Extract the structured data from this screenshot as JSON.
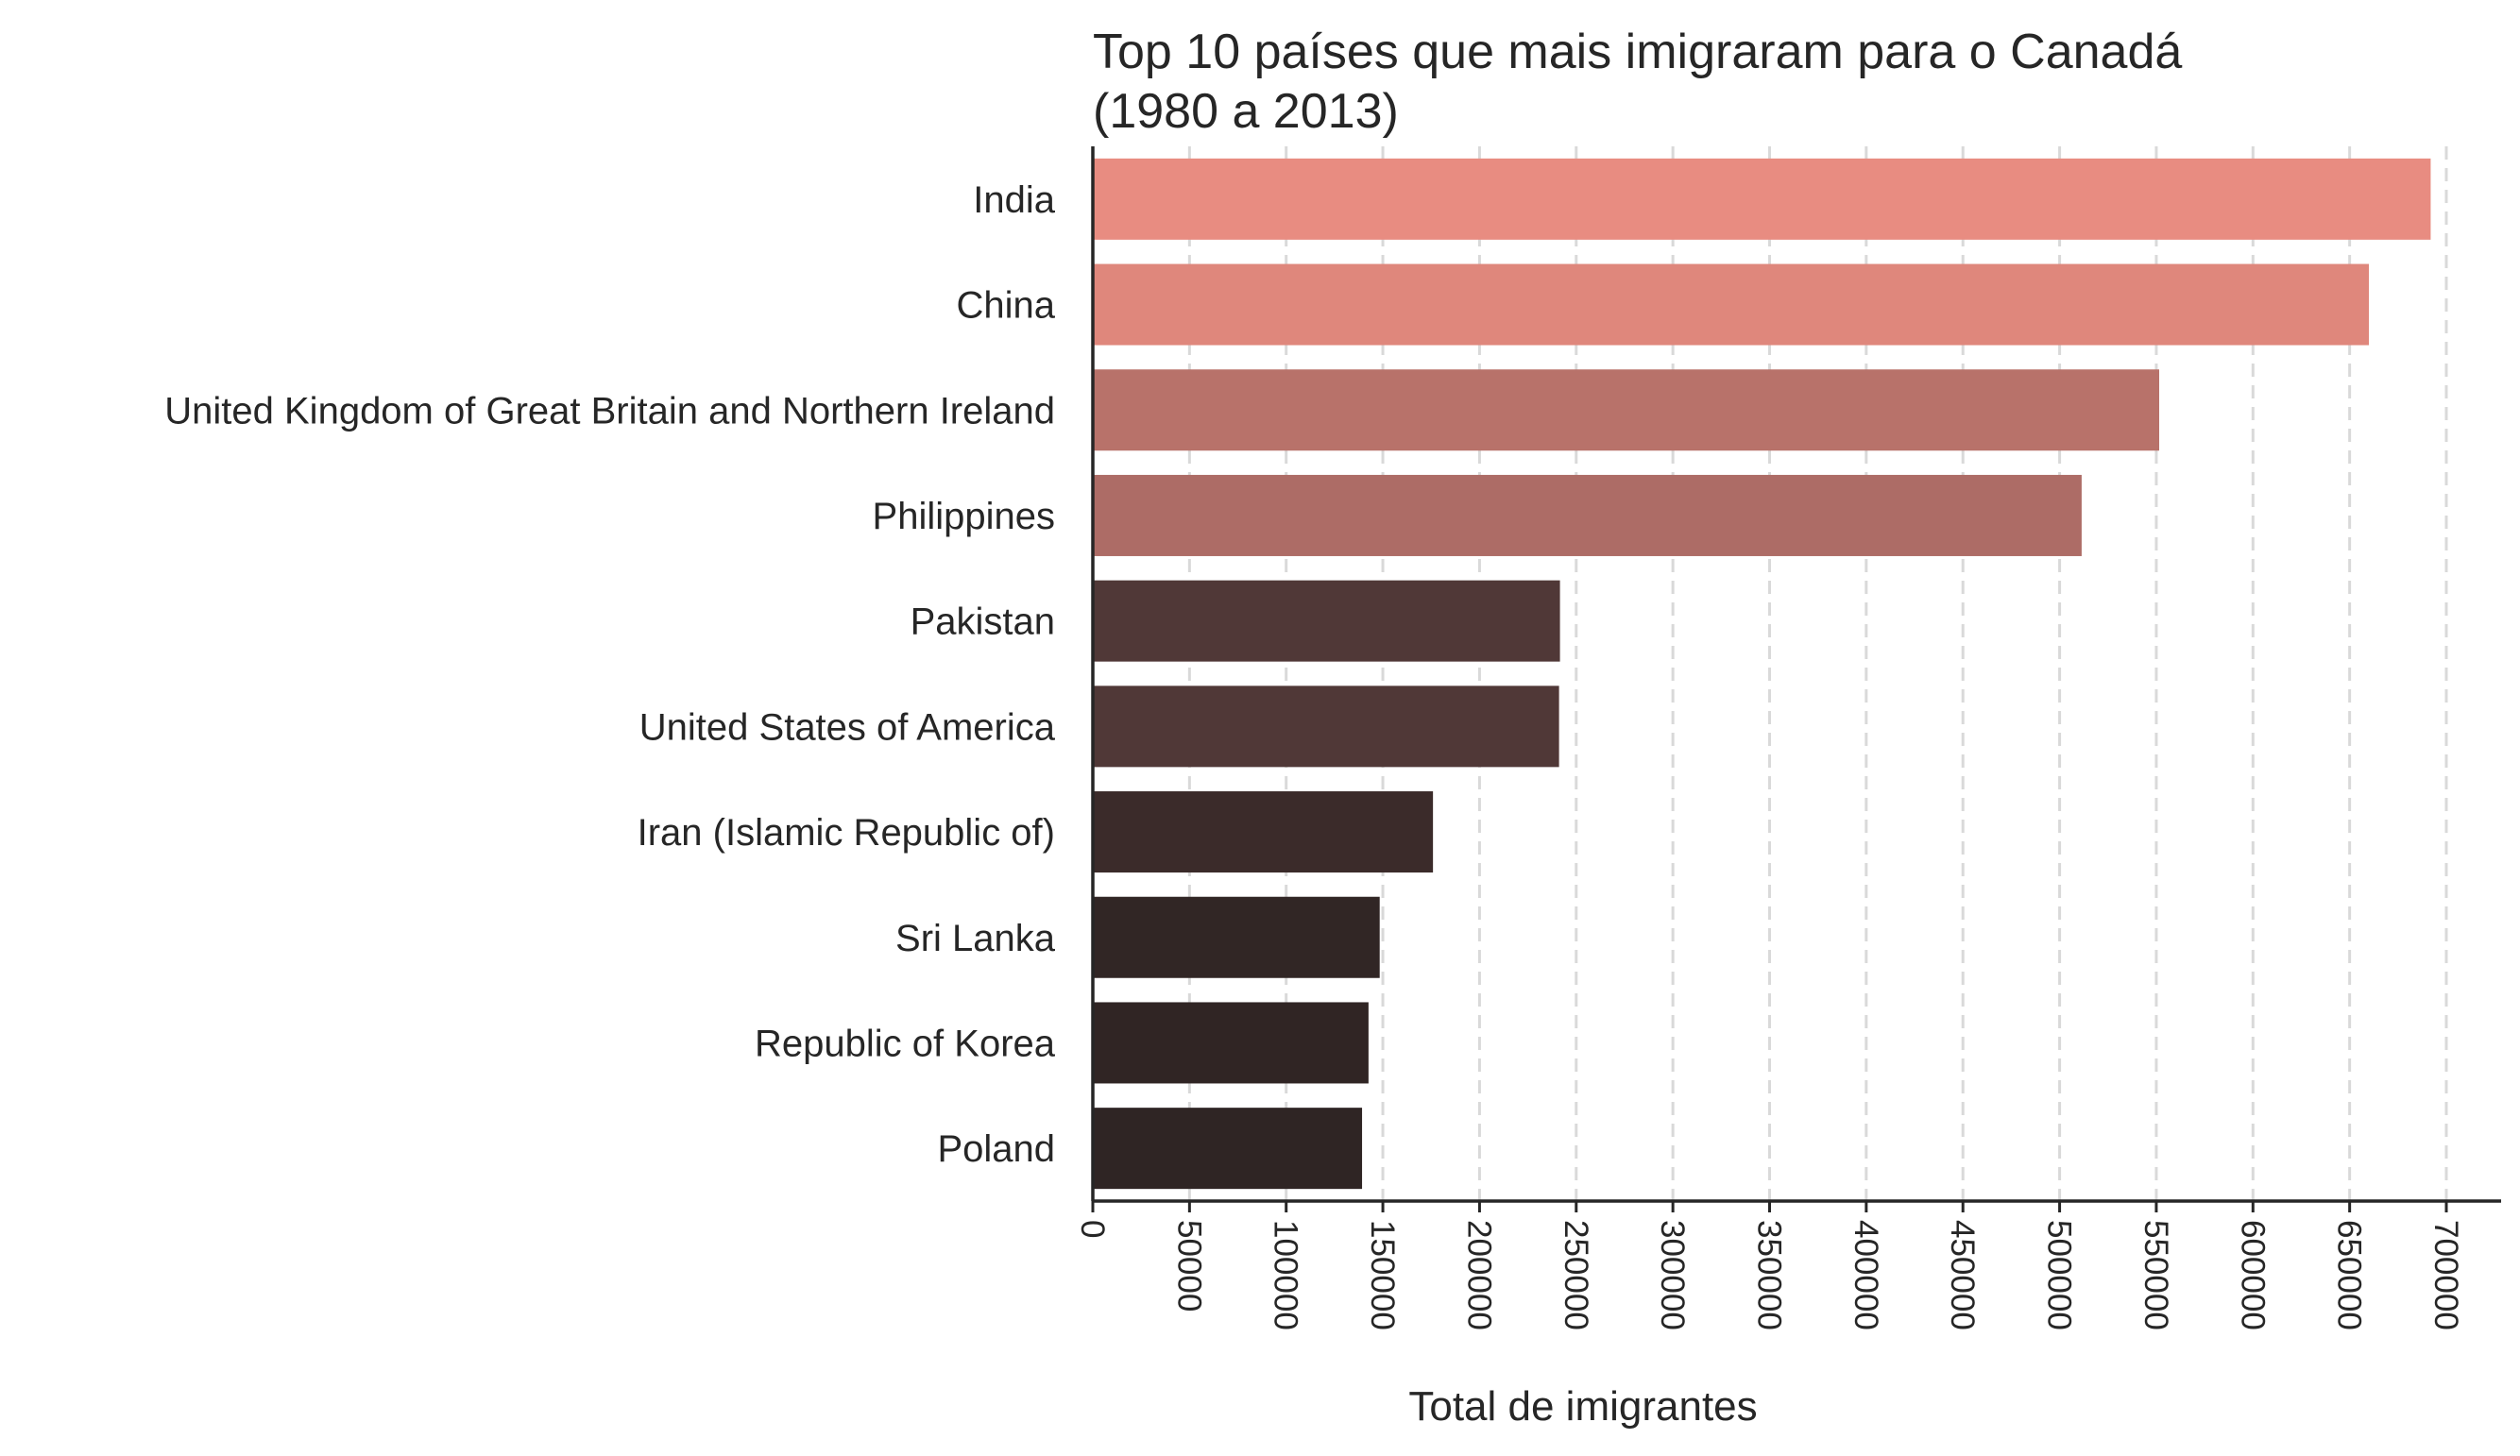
{
  "chart_data": {
    "type": "bar",
    "orientation": "horizontal",
    "title_lines": [
      "Top 10 países que mais imigraram para o Canadá",
      "(1980 a 2013)"
    ],
    "xlabel": "Total de imigrantes",
    "ylabel": "",
    "xlim": [
      0,
      725000
    ],
    "xticks": [
      0,
      50000,
      100000,
      150000,
      200000,
      250000,
      300000,
      350000,
      400000,
      450000,
      500000,
      550000,
      600000,
      650000,
      700000
    ],
    "tick_label_rotation": 90,
    "grid": {
      "x": true,
      "y": false,
      "style": "dashed"
    },
    "categories": [
      "India",
      "China",
      "United Kingdom of Great Britain and Northern Ireland",
      "Philippines",
      "Pakistan",
      "United States of America",
      "Iran (Islamic Republic of)",
      "Sri Lanka",
      "Republic of Korea",
      "Poland"
    ],
    "values": [
      691904,
      659962,
      551500,
      511391,
      241600,
      241122,
      175923,
      148358,
      142581,
      139241
    ],
    "colors": [
      "#e88c81",
      "#df877c",
      "#b8726a",
      "#ad6c66",
      "#503837",
      "#503837",
      "#3b2b2a",
      "#312625",
      "#302524",
      "#2f2524"
    ]
  }
}
